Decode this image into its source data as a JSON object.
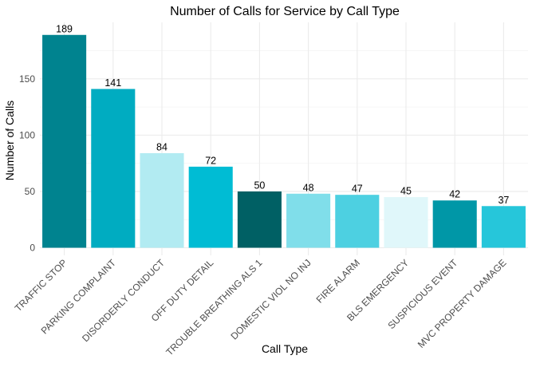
{
  "chart_data": {
    "type": "bar",
    "title": "Number of Calls for Service by Call Type",
    "xlabel": "Call Type",
    "ylabel": "Number of Calls",
    "categories": [
      "TRAFFIC STOP",
      "PARKING COMPLAINT",
      "DISORDERLY CONDUCT",
      "OFF DUTY DETAIL",
      "TROUBLE BREATHING ALS 1",
      "DOMESTIC VIOL NO INJ",
      "FIRE ALARM",
      "BLS EMERGENCY",
      "SUSPICIOUS EVENT",
      "MVC PROPERTY DAMAGE"
    ],
    "values": [
      189,
      141,
      84,
      72,
      50,
      48,
      47,
      45,
      42,
      37
    ],
    "colors": [
      "#00838F",
      "#00ACC1",
      "#B2EBF2",
      "#00BCD4",
      "#006064",
      "#80DEEA",
      "#4DD0E1",
      "#E0F7FA",
      "#0097A7",
      "#26C6DA"
    ],
    "yticks": [
      0,
      50,
      100,
      150
    ],
    "ylim": [
      0,
      189
    ],
    "grid": true,
    "legend": "none"
  }
}
